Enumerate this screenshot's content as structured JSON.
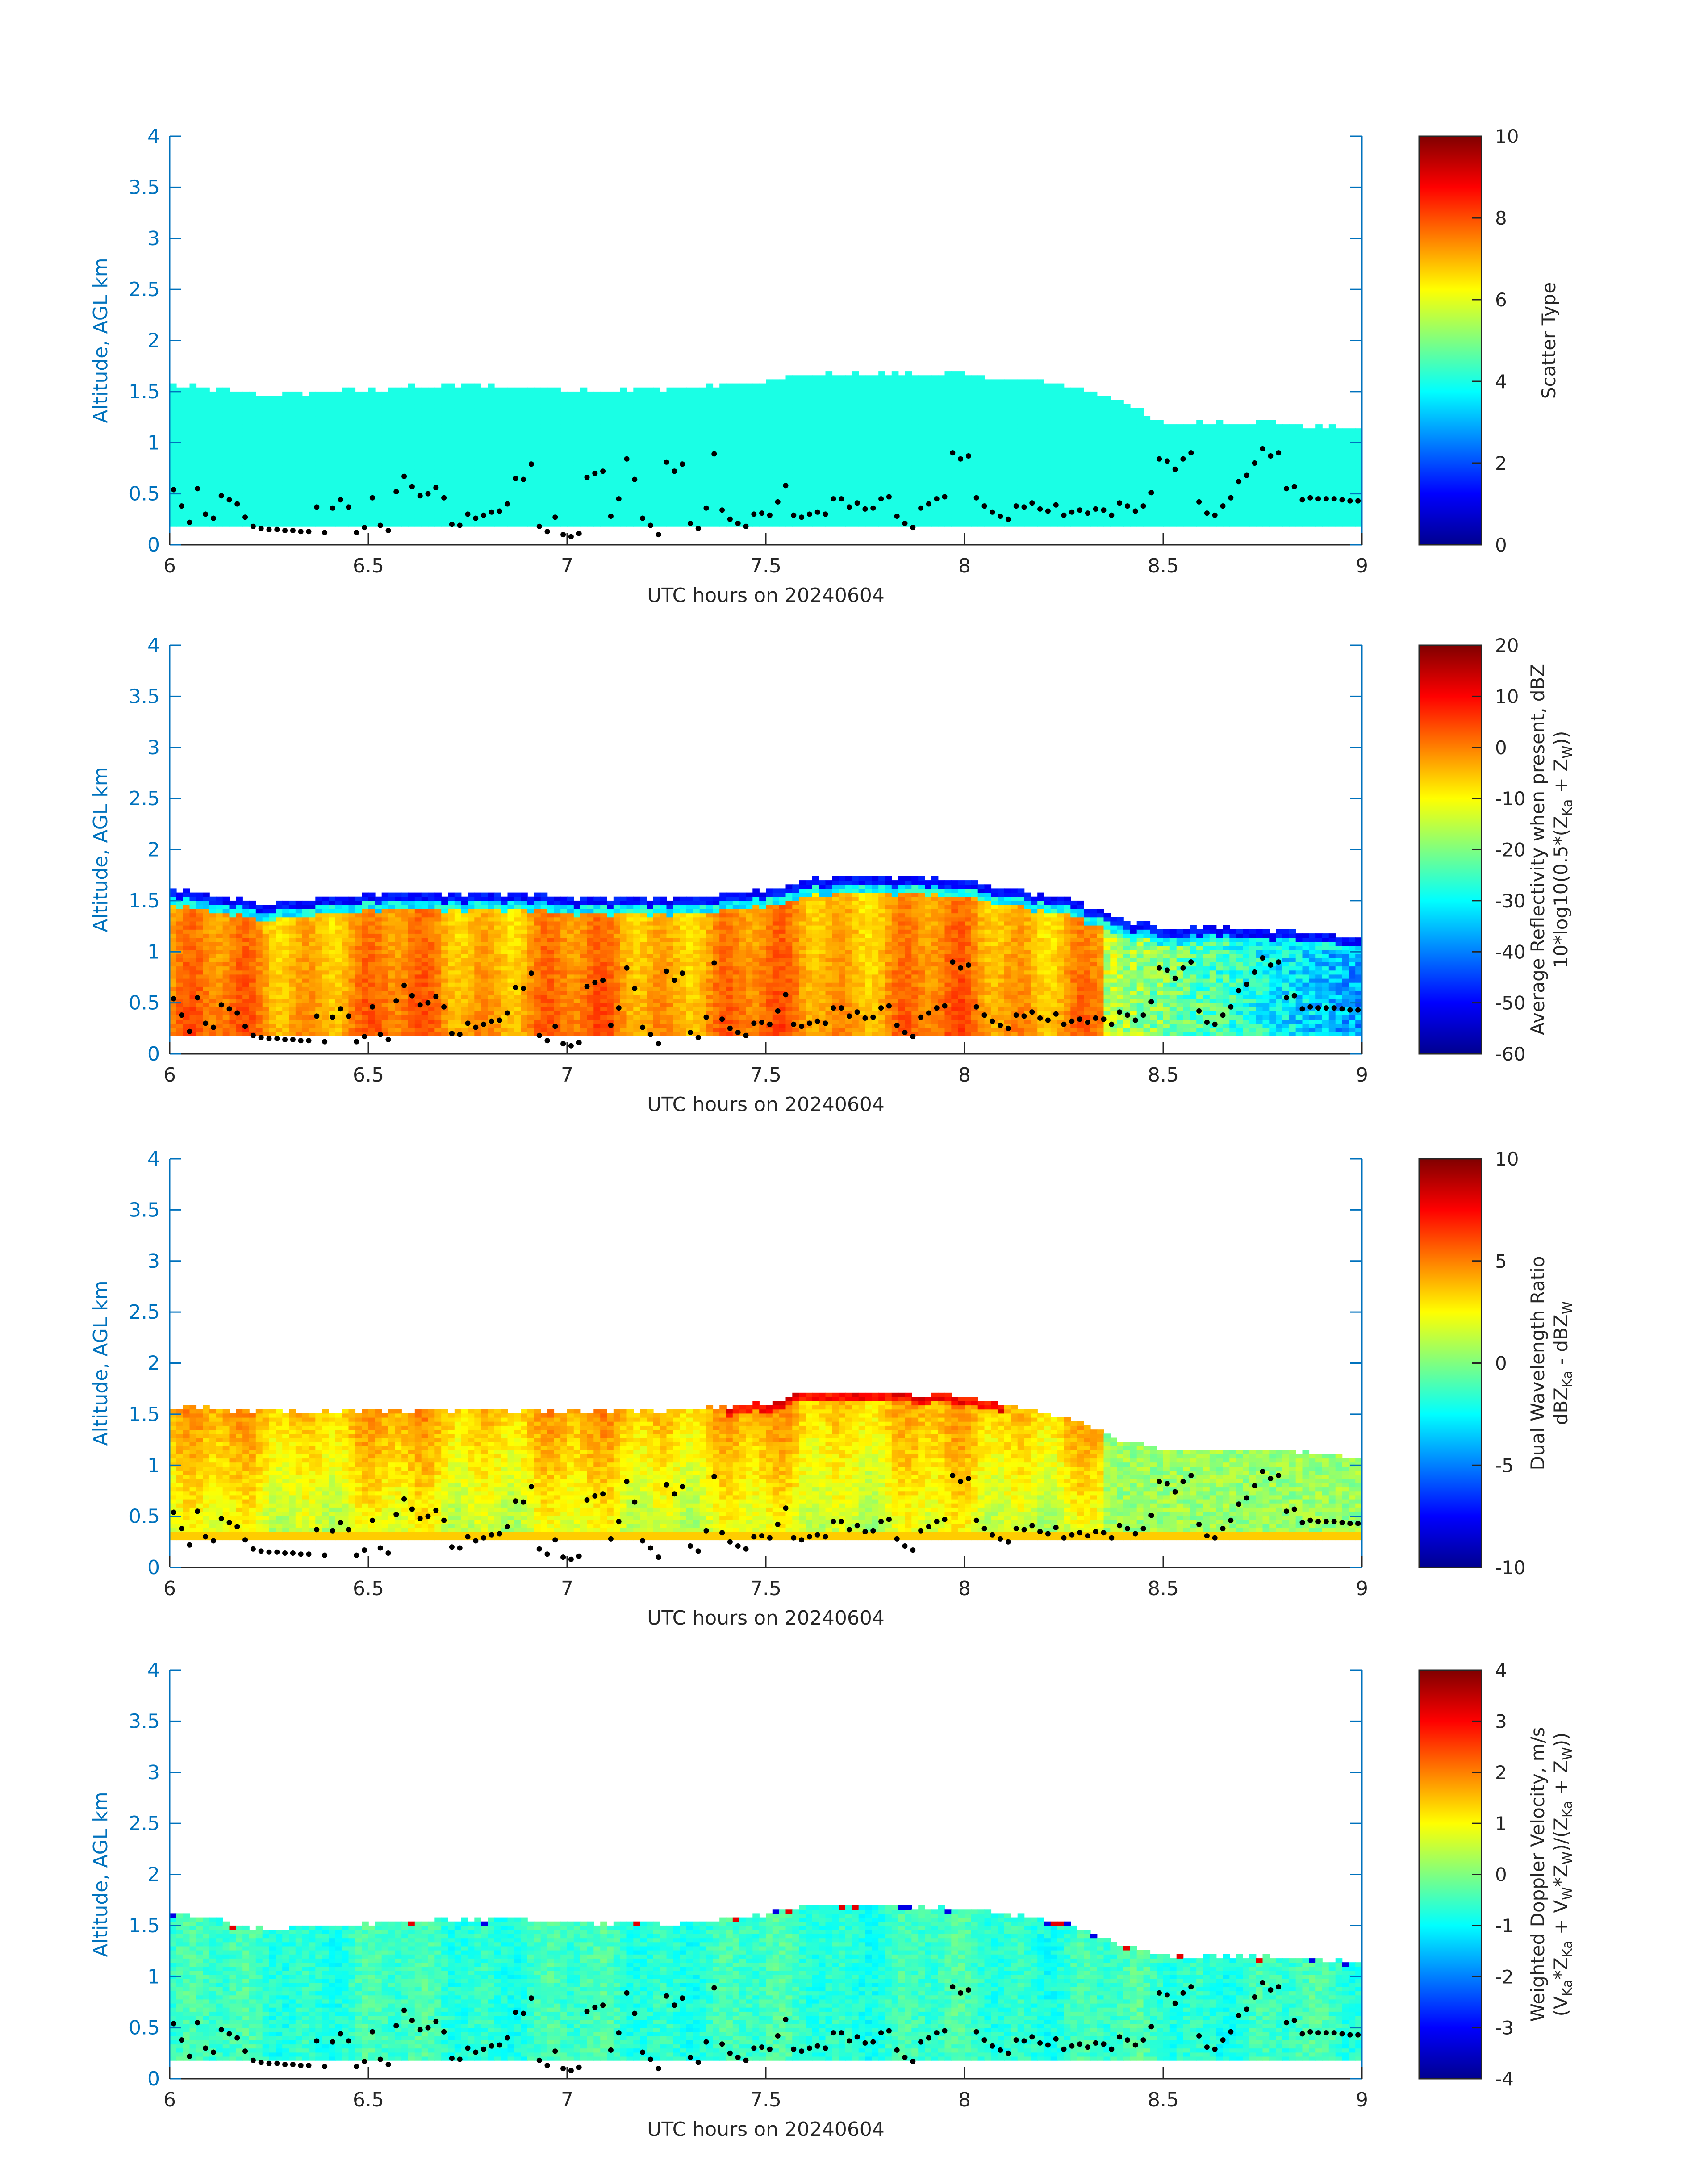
{
  "chart_data": [
    {
      "type": "heatmap",
      "xlabel": "UTC hours on 20240604",
      "ylabel": "Altitude, AGL km",
      "xlim": [
        6,
        9
      ],
      "ylim": [
        0,
        4
      ],
      "xticks": [
        "6",
        "6.5",
        "7",
        "7.5",
        "8",
        "8.5",
        "9"
      ],
      "yticks": [
        "0",
        "0.5",
        "1",
        "1.5",
        "2",
        "2.5",
        "3",
        "3.5",
        "4"
      ],
      "colorbar": {
        "label_lines": [
          "Scatter Type"
        ],
        "range": [
          0,
          10
        ],
        "ticks": [
          "0",
          "2",
          "4",
          "6",
          "8",
          "10"
        ],
        "colormap": "jet"
      },
      "field": {
        "base_km": 0.18,
        "typical_value": 4,
        "top_km_profile": {
          "x": [
            6.0,
            6.25,
            6.5,
            6.75,
            7.0,
            7.25,
            7.5,
            7.6,
            7.75,
            8.0,
            8.25,
            8.4,
            8.5,
            8.6,
            8.75,
            9.0
          ],
          "top": [
            1.55,
            1.45,
            1.5,
            1.55,
            1.5,
            1.5,
            1.58,
            1.65,
            1.65,
            1.65,
            1.55,
            1.38,
            1.15,
            1.18,
            1.18,
            1.1
          ]
        }
      },
      "cloud_base_points": "shared"
    },
    {
      "type": "heatmap",
      "xlabel": "UTC hours on 20240604",
      "ylabel": "Altitude, AGL km",
      "xlim": [
        6,
        9
      ],
      "ylim": [
        0,
        4
      ],
      "xticks": [
        "6",
        "6.5",
        "7",
        "7.5",
        "8",
        "8.5",
        "9"
      ],
      "yticks": [
        "0",
        "0.5",
        "1",
        "1.5",
        "2",
        "2.5",
        "3",
        "3.5",
        "4"
      ],
      "colorbar": {
        "label_lines": [
          "Average Reflectivity when present, dBZ",
          "10*log10(0.5*(Z",
          "Ka",
          " + Z",
          "W",
          "))"
        ],
        "range": [
          -60,
          20
        ],
        "ticks": [
          "-60",
          "-50",
          "-40",
          "-30",
          "-20",
          "-10",
          "0",
          "10",
          "20"
        ],
        "colormap": "jet"
      },
      "field": {
        "base_km": 0.18,
        "profile": "reflectivity: -5 to 5 dBZ in core, -50 dBZ at cloud top edge",
        "top_km_profile": {
          "x": [
            6.0,
            6.25,
            6.5,
            6.75,
            7.0,
            7.25,
            7.5,
            7.6,
            7.75,
            8.0,
            8.25,
            8.4,
            8.5,
            8.6,
            8.75,
            9.0
          ],
          "top": [
            1.6,
            1.45,
            1.55,
            1.55,
            1.52,
            1.5,
            1.58,
            1.68,
            1.72,
            1.68,
            1.5,
            1.3,
            1.2,
            1.22,
            1.2,
            1.12
          ]
        }
      },
      "cloud_base_points": "shared"
    },
    {
      "type": "heatmap",
      "xlabel": "UTC hours on 20240604",
      "ylabel": "Altitude, AGL km",
      "xlim": [
        6,
        9
      ],
      "ylim": [
        0,
        4
      ],
      "xticks": [
        "6",
        "6.5",
        "7",
        "7.5",
        "8",
        "8.5",
        "9"
      ],
      "yticks": [
        "0",
        "0.5",
        "1",
        "1.5",
        "2",
        "2.5",
        "3",
        "3.5",
        "4"
      ],
      "colorbar": {
        "label_lines": [
          "Dual Wavelength Ratio",
          "dBZ",
          "Ka",
          " - dBZ",
          "W"
        ],
        "range": [
          -10,
          10
        ],
        "ticks": [
          "-10",
          "-5",
          "0",
          "5",
          "10"
        ],
        "colormap": "jet"
      },
      "field": {
        "base_km": 0.27,
        "profile": "DWR: 0 to 4 dB in body, 5 to 7 dB near top",
        "top_km_profile": {
          "x": [
            6.0,
            6.25,
            6.5,
            6.75,
            7.0,
            7.25,
            7.5,
            7.6,
            7.75,
            8.0,
            8.25,
            8.4,
            8.5,
            8.6,
            8.75,
            9.0
          ],
          "top": [
            1.55,
            1.5,
            1.5,
            1.52,
            1.5,
            1.5,
            1.58,
            1.68,
            1.68,
            1.65,
            1.45,
            1.22,
            1.12,
            1.12,
            1.12,
            1.05
          ]
        }
      },
      "cloud_base_points": "shared"
    },
    {
      "type": "heatmap",
      "xlabel": "UTC hours on 20240604",
      "ylabel": "Altitude, AGL km",
      "xlim": [
        6,
        9
      ],
      "ylim": [
        0,
        4
      ],
      "xticks": [
        "6",
        "6.5",
        "7",
        "7.5",
        "8",
        "8.5",
        "9"
      ],
      "yticks": [
        "0",
        "0.5",
        "1",
        "1.5",
        "2",
        "2.5",
        "3",
        "3.5",
        "4"
      ],
      "colorbar": {
        "label_lines": [
          "Weighted Doppler Velocity, m/s",
          "(V",
          "Ka",
          "*Z",
          "Ka",
          " + V",
          "W",
          "*Z",
          "W",
          ")/(Z",
          "Ka",
          " + Z",
          "W",
          "))"
        ],
        "range": [
          -4,
          4
        ],
        "ticks": [
          "-4",
          "-3",
          "-2",
          "-1",
          "0",
          "1",
          "2",
          "3",
          "4"
        ],
        "colormap": "jet"
      },
      "field": {
        "base_km": 0.18,
        "profile": "velocity: -0.5 to -1 m/s in body",
        "top_km_profile": {
          "x": [
            6.0,
            6.25,
            6.5,
            6.75,
            7.0,
            7.25,
            7.5,
            7.6,
            7.75,
            8.0,
            8.25,
            8.4,
            8.5,
            8.6,
            8.75,
            9.0
          ],
          "top": [
            1.6,
            1.45,
            1.5,
            1.55,
            1.52,
            1.5,
            1.58,
            1.68,
            1.68,
            1.65,
            1.5,
            1.3,
            1.18,
            1.18,
            1.18,
            1.12
          ]
        }
      },
      "cloud_base_points": "shared"
    }
  ],
  "cloud_base_points": {
    "x": [
      6.01,
      6.03,
      6.05,
      6.07,
      6.09,
      6.11,
      6.13,
      6.15,
      6.17,
      6.19,
      6.21,
      6.23,
      6.25,
      6.27,
      6.29,
      6.31,
      6.33,
      6.35,
      6.37,
      6.39,
      6.41,
      6.43,
      6.45,
      6.47,
      6.49,
      6.51,
      6.53,
      6.55,
      6.57,
      6.59,
      6.61,
      6.63,
      6.65,
      6.67,
      6.69,
      6.71,
      6.73,
      6.75,
      6.77,
      6.79,
      6.81,
      6.83,
      6.85,
      6.87,
      6.89,
      6.91,
      6.93,
      6.95,
      6.97,
      6.99,
      7.01,
      7.03,
      7.05,
      7.07,
      7.09,
      7.11,
      7.13,
      7.15,
      7.17,
      7.19,
      7.21,
      7.23,
      7.25,
      7.27,
      7.29,
      7.31,
      7.33,
      7.35,
      7.37,
      7.39,
      7.41,
      7.43,
      7.45,
      7.47,
      7.49,
      7.51,
      7.53,
      7.55,
      7.57,
      7.59,
      7.61,
      7.63,
      7.65,
      7.67,
      7.69,
      7.71,
      7.73,
      7.75,
      7.77,
      7.79,
      7.81,
      7.83,
      7.85,
      7.87,
      7.89,
      7.91,
      7.93,
      7.95,
      7.97,
      7.99,
      8.01,
      8.03,
      8.05,
      8.07,
      8.09,
      8.11,
      8.13,
      8.15,
      8.17,
      8.19,
      8.21,
      8.23,
      8.25,
      8.27,
      8.29,
      8.31,
      8.33,
      8.35,
      8.37,
      8.39,
      8.41,
      8.43,
      8.45,
      8.47,
      8.49,
      8.51,
      8.53,
      8.55,
      8.57,
      8.59,
      8.61,
      8.63,
      8.65,
      8.67,
      8.69,
      8.71,
      8.73,
      8.75,
      8.77,
      8.79,
      8.81,
      8.83,
      8.85,
      8.87,
      8.89,
      8.91,
      8.93,
      8.95,
      8.97,
      8.99
    ],
    "y": [
      0.54,
      0.38,
      0.22,
      0.55,
      0.3,
      0.26,
      0.48,
      0.44,
      0.4,
      0.27,
      0.18,
      0.16,
      0.15,
      0.15,
      0.14,
      0.14,
      0.13,
      0.13,
      0.37,
      0.12,
      0.36,
      0.44,
      0.37,
      0.12,
      0.17,
      0.46,
      0.19,
      0.14,
      0.52,
      0.67,
      0.57,
      0.48,
      0.5,
      0.56,
      0.46,
      0.2,
      0.19,
      0.3,
      0.26,
      0.29,
      0.32,
      0.33,
      0.4,
      0.65,
      0.64,
      0.79,
      0.18,
      0.13,
      0.27,
      0.1,
      0.08,
      0.11,
      0.66,
      0.7,
      0.72,
      0.28,
      0.45,
      0.84,
      0.64,
      0.26,
      0.19,
      0.1,
      0.81,
      0.72,
      0.79,
      0.21,
      0.16,
      0.36,
      0.89,
      0.34,
      0.25,
      0.21,
      0.18,
      0.3,
      0.31,
      0.29,
      0.42,
      0.58,
      0.29,
      0.27,
      0.3,
      0.32,
      0.3,
      0.45,
      0.45,
      0.37,
      0.41,
      0.35,
      0.36,
      0.45,
      0.47,
      0.28,
      0.21,
      0.17,
      0.36,
      0.4,
      0.45,
      0.47,
      0.9,
      0.84,
      0.87,
      0.46,
      0.38,
      0.32,
      0.28,
      0.25,
      0.38,
      0.37,
      0.41,
      0.35,
      0.33,
      0.39,
      0.29,
      0.32,
      0.34,
      0.31,
      0.35,
      0.34,
      0.29,
      0.41,
      0.38,
      0.33,
      0.38,
      0.51,
      0.84,
      0.82,
      0.74,
      0.84,
      0.9,
      0.42,
      0.31,
      0.29,
      0.38,
      0.46,
      0.62,
      0.68,
      0.8,
      0.94,
      0.87,
      0.9,
      0.55,
      0.57,
      0.44,
      0.46,
      0.45,
      0.45,
      0.45,
      0.44,
      0.43,
      0.43
    ]
  }
}
